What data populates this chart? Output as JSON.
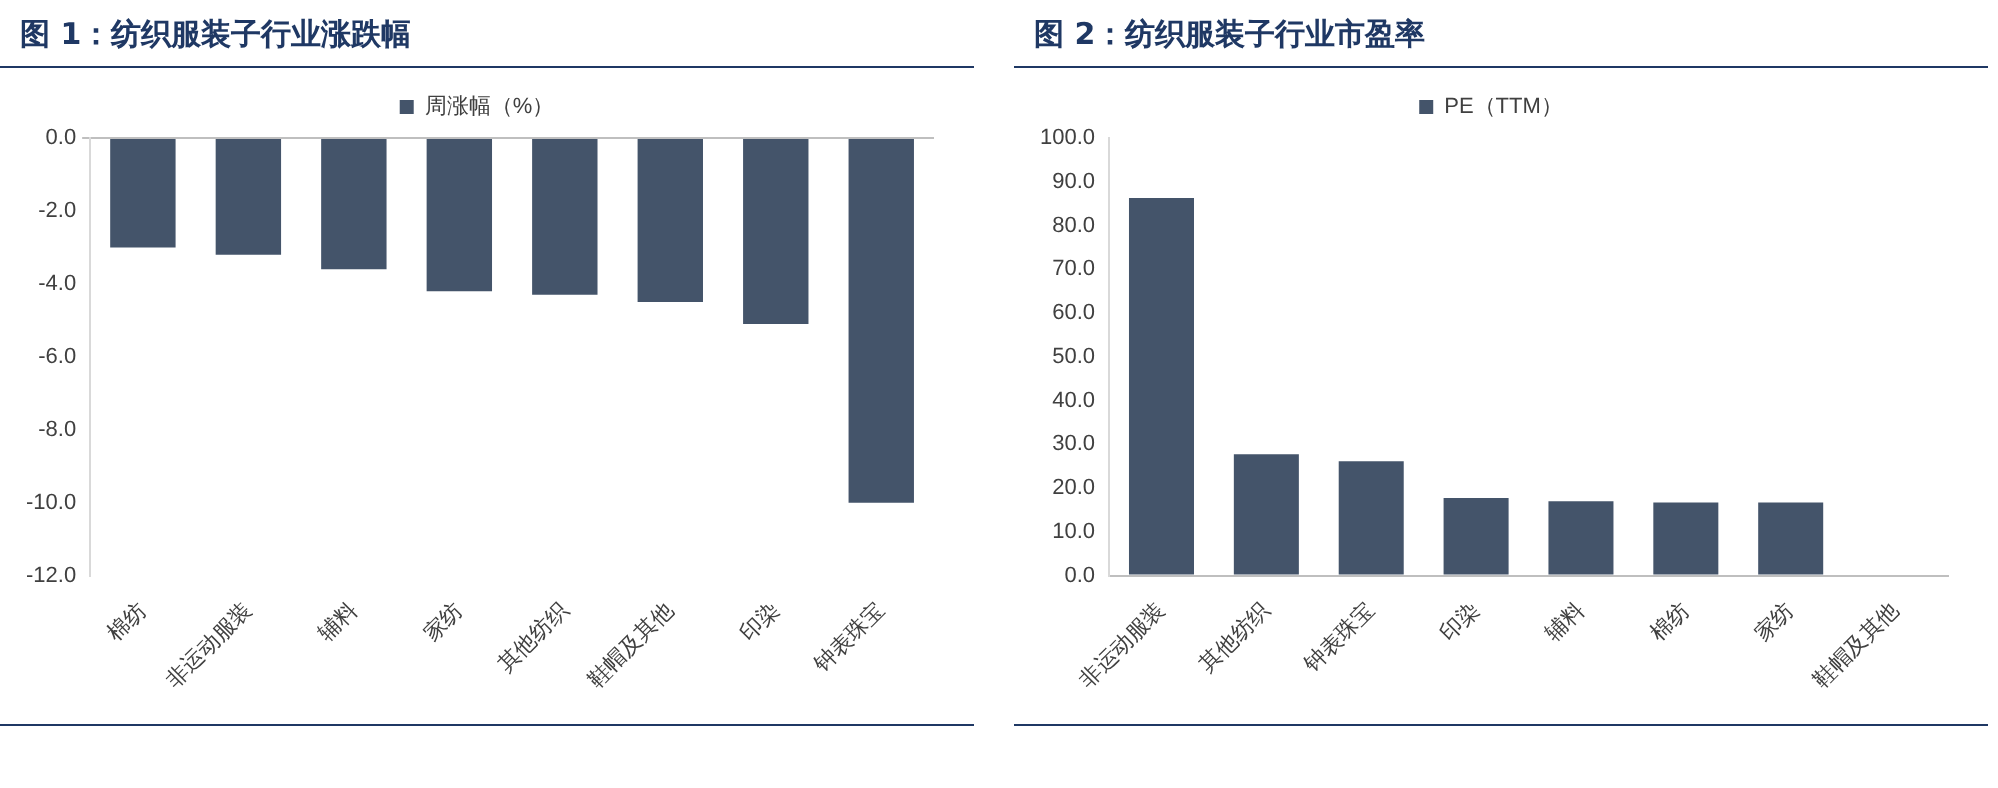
{
  "chart_data": [
    {
      "type": "bar",
      "title": "图 1：纺织服装子行业涨跌幅",
      "categories": [
        "棉纺",
        "非运动服装",
        "辅料",
        "家纺",
        "其他纺织",
        "鞋帽及其他",
        "印染",
        "钟表珠宝"
      ],
      "series": [
        {
          "name": "周涨幅（%）",
          "color": "#44546a",
          "values": [
            -3.0,
            -3.2,
            -3.6,
            -4.2,
            -4.3,
            -4.5,
            -5.1,
            -10.0
          ]
        }
      ],
      "ylim": [
        -12,
        0
      ],
      "yticks": [
        {
          "value": -12,
          "label": "-12.0"
        },
        {
          "value": -10,
          "label": "-10.0"
        },
        {
          "value": -8,
          "label": "-8.0"
        },
        {
          "value": -6,
          "label": "-6.0"
        },
        {
          "value": -4,
          "label": "-4.0"
        },
        {
          "value": -2,
          "label": "-2.0"
        },
        {
          "value": 0,
          "label": "0.0"
        }
      ],
      "legend": "top"
    },
    {
      "type": "bar",
      "title": "图 2：纺织服装子行业市盈率",
      "categories": [
        "非运动服装",
        "其他纺织",
        "钟表珠宝",
        "印染",
        "辅料",
        "棉纺",
        "家纺",
        "鞋帽及其他"
      ],
      "series": [
        {
          "name": "PE（TTM）",
          "color": "#44546a",
          "values": [
            86.3,
            27.7,
            26.1,
            17.7,
            17.0,
            16.7,
            16.7,
            null
          ]
        }
      ],
      "ylim": [
        0,
        100
      ],
      "yticks": [
        {
          "value": 0,
          "label": "0.0"
        },
        {
          "value": 10,
          "label": "10.0"
        },
        {
          "value": 20,
          "label": "20.0"
        },
        {
          "value": 30,
          "label": "30.0"
        },
        {
          "value": 40,
          "label": "40.0"
        },
        {
          "value": 50,
          "label": "50.0"
        },
        {
          "value": 60,
          "label": "60.0"
        },
        {
          "value": 70,
          "label": "70.0"
        },
        {
          "value": 80,
          "label": "80.0"
        },
        {
          "value": 90,
          "label": "90.0"
        },
        {
          "value": 100,
          "label": "100.0"
        }
      ],
      "legend": "top"
    }
  ]
}
